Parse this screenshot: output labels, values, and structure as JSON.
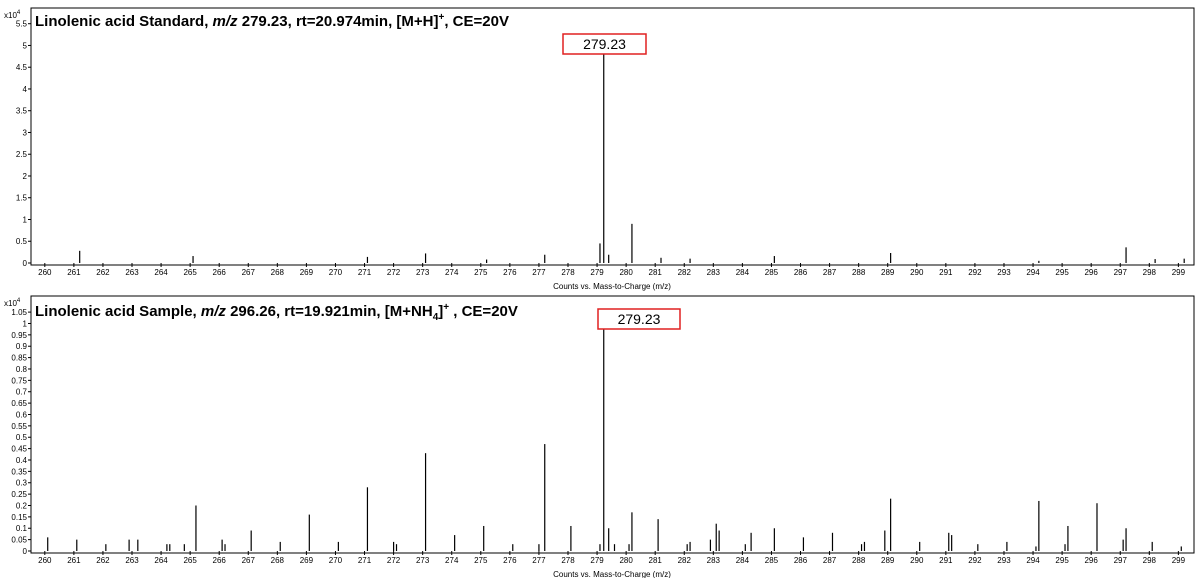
{
  "chart_data": [
    {
      "type": "bar",
      "title_parts": {
        "name": "Linolenic acid Standard, ",
        "mz_label": "m/z",
        "rest_a": " 279.23, rt=20.974min, [M+H]",
        "sup": "+",
        "rest_b": ", CE=20V"
      },
      "xlabel": "Counts vs. Mass-to-Charge (m/z)",
      "y_exponent_base": "x10",
      "y_exponent_power": "4",
      "xlim": [
        259.8,
        299.4
      ],
      "ylim": [
        0,
        5.7
      ],
      "y_ticks": [
        0,
        0.5,
        1,
        1.5,
        2,
        2.5,
        3,
        3.5,
        4,
        4.5,
        5,
        5.5
      ],
      "y_tick_labels": [
        "0",
        "0.5",
        "1",
        "1.5",
        "2",
        "2.5",
        "3",
        "3.5",
        "4",
        "4.5",
        "5",
        "5.5"
      ],
      "x_ticks": [
        260,
        261,
        262,
        263,
        264,
        265,
        266,
        267,
        268,
        269,
        270,
        271,
        272,
        273,
        274,
        275,
        276,
        277,
        278,
        279,
        280,
        281,
        282,
        283,
        284,
        285,
        286,
        287,
        288,
        289,
        290,
        291,
        292,
        293,
        294,
        295,
        296,
        297,
        298,
        299
      ],
      "x_tick_labels": [
        "260",
        "261",
        "262",
        "263",
        "264",
        "265",
        "266",
        "267",
        "268",
        "269",
        "270",
        "271",
        "272",
        "273",
        "274",
        "275",
        "276",
        "277",
        "278",
        "279",
        "280",
        "281",
        "282",
        "283",
        "284",
        "285",
        "286",
        "287",
        "288",
        "289",
        "290",
        "291",
        "292",
        "293",
        "294",
        "295",
        "296",
        "297",
        "298",
        "299"
      ],
      "callout": "279.23",
      "peaks": {
        "x": [
          261.2,
          265.1,
          271.1,
          273.1,
          275.2,
          277.2,
          279.1,
          279.23,
          279.4,
          280.2,
          281.2,
          282.2,
          285.1,
          289.1,
          294.2,
          297.2,
          298.2,
          299.2
        ],
        "y": [
          0.28,
          0.16,
          0.14,
          0.22,
          0.08,
          0.19,
          0.45,
          4.85,
          0.19,
          0.9,
          0.12,
          0.1,
          0.16,
          0.23,
          0.05,
          0.36,
          0.09,
          0.1
        ]
      }
    },
    {
      "type": "bar",
      "title_parts": {
        "name": "Linolenic acid Sample, ",
        "mz_label": "m/z",
        "rest_a": " 296.26, rt=19.921min, [M+NH",
        "sub": "4",
        "rest_b": "]",
        "sup": "+",
        "rest_c": " , CE=20V"
      },
      "xlabel": "Counts vs. Mass-to-Charge (m/z)",
      "y_exponent_base": "x10",
      "y_exponent_power": "4",
      "xlim": [
        259.8,
        299.4
      ],
      "ylim": [
        0,
        1.09
      ],
      "y_ticks": [
        0,
        0.05,
        0.1,
        0.15,
        0.2,
        0.25,
        0.3,
        0.35,
        0.4,
        0.45,
        0.5,
        0.55,
        0.6,
        0.65,
        0.7,
        0.75,
        0.8,
        0.85,
        0.9,
        0.95,
        1,
        1.05
      ],
      "y_tick_labels": [
        "0",
        "0.05",
        "0.1",
        "0.15",
        "0.2",
        "0.25",
        "0.3",
        "0.35",
        "0.4",
        "0.45",
        "0.5",
        "0.55",
        "0.6",
        "0.65",
        "0.7",
        "0.75",
        "0.8",
        "0.85",
        "0.9",
        "0.95",
        "1",
        "1.05"
      ],
      "x_ticks": [
        260,
        261,
        262,
        263,
        264,
        265,
        266,
        267,
        268,
        269,
        270,
        271,
        272,
        273,
        274,
        275,
        276,
        277,
        278,
        279,
        280,
        281,
        282,
        283,
        284,
        285,
        286,
        287,
        288,
        289,
        290,
        291,
        292,
        293,
        294,
        295,
        296,
        297,
        298,
        299
      ],
      "x_tick_labels": [
        "260",
        "261",
        "262",
        "263",
        "264",
        "265",
        "266",
        "267",
        "268",
        "269",
        "270",
        "271",
        "272",
        "273",
        "274",
        "275",
        "276",
        "277",
        "278",
        "279",
        "280",
        "281",
        "282",
        "283",
        "284",
        "285",
        "286",
        "287",
        "288",
        "289",
        "290",
        "291",
        "292",
        "293",
        "294",
        "295",
        "296",
        "297",
        "298",
        "299"
      ],
      "callout": "279.23",
      "peaks": {
        "x": [
          260.1,
          261.1,
          262.1,
          262.9,
          263.2,
          264.2,
          264.3,
          264.8,
          265.2,
          266.1,
          266.2,
          267.1,
          268.1,
          269.1,
          270.1,
          271.1,
          272.0,
          272.1,
          273.1,
          274.1,
          275.1,
          276.1,
          277.0,
          277.2,
          278.1,
          279.1,
          279.23,
          279.4,
          279.6,
          280.1,
          280.2,
          281.1,
          282.1,
          282.2,
          282.9,
          283.1,
          283.2,
          284.1,
          284.3,
          285.1,
          286.1,
          287.1,
          288.1,
          288.2,
          288.9,
          289.1,
          290.1,
          291.1,
          291.2,
          292.1,
          293.1,
          294.1,
          294.2,
          295.1,
          295.2,
          296.2,
          297.1,
          297.2,
          298.1,
          299.1
        ],
        "y": [
          0.06,
          0.05,
          0.03,
          0.05,
          0.05,
          0.03,
          0.03,
          0.03,
          0.2,
          0.05,
          0.03,
          0.09,
          0.04,
          0.16,
          0.04,
          0.28,
          0.04,
          0.03,
          0.43,
          0.07,
          0.11,
          0.03,
          0.03,
          0.47,
          0.11,
          0.03,
          0.98,
          0.1,
          0.03,
          0.03,
          0.17,
          0.14,
          0.03,
          0.04,
          0.05,
          0.12,
          0.09,
          0.03,
          0.08,
          0.1,
          0.06,
          0.08,
          0.03,
          0.04,
          0.09,
          0.23,
          0.04,
          0.08,
          0.07,
          0.03,
          0.04,
          0.02,
          0.22,
          0.03,
          0.11,
          0.21,
          0.05,
          0.1,
          0.04,
          0.02
        ]
      }
    }
  ]
}
